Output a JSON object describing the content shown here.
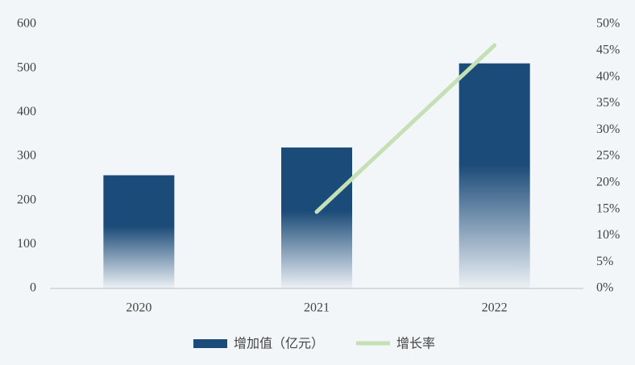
{
  "chart_data": {
    "type": "bar_line",
    "categories": [
      "2020",
      "2021",
      "2022"
    ],
    "series": [
      {
        "name": "增加值（亿元）",
        "type": "bar",
        "color": "#1b4b78",
        "axis": "y",
        "values": [
          257,
          320,
          511
        ]
      },
      {
        "name": "增长率",
        "type": "line",
        "color": "#c5e0b4",
        "axis": "y2",
        "values": [
          null,
          14.5,
          46
        ]
      }
    ],
    "ylim": [
      0,
      600
    ],
    "yticks": [
      0,
      100,
      200,
      300,
      400,
      500,
      600
    ],
    "y2lim": [
      0,
      50
    ],
    "y2ticks": [
      {
        "value": 0,
        "label": "0%"
      },
      {
        "value": 5,
        "label": "5%"
      },
      {
        "value": 10,
        "label": "10%"
      },
      {
        "value": 15,
        "label": "15%"
      },
      {
        "value": 20,
        "label": "20%"
      },
      {
        "value": 25,
        "label": "25%"
      },
      {
        "value": 30,
        "label": "30%"
      },
      {
        "value": 35,
        "label": "35%"
      },
      {
        "value": 40,
        "label": "40%"
      },
      {
        "value": 45,
        "label": "45%"
      },
      {
        "value": 50,
        "label": "50%"
      }
    ],
    "legend": "bottom",
    "grid": false
  }
}
